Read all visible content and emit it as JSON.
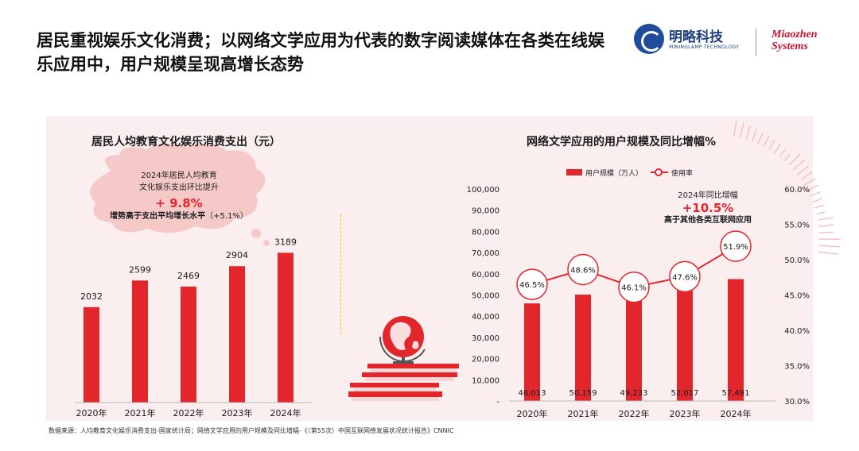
{
  "page": {
    "title": "居民重视娱乐文化消费；以网络文学应用为代表的数字阅读媒体在各类在线娱乐应用中，用户规模呈现高增长态势",
    "footnote": "数据来源：人均教育文化娱乐消费支出-国家统计局；网络文学应用的用户规模及同比增幅-《（第55次）中国互联网络发展状况统计报告》CNNIC"
  },
  "brand": {
    "name_cn": "明略科技",
    "name_en": "MININGLAMP TECHNOLOGY",
    "partner_line1": "Miaozhen",
    "partner_line2": "Systems"
  },
  "colors": {
    "accent": "#e3262c",
    "panel": "#fbeeee",
    "divider": "#f2c200"
  },
  "callouts": {
    "left": {
      "line1": "2024年居民人均教育",
      "line2": "文化娱乐支出环比提升",
      "pct": "+ 9.8%",
      "note_main": "增势高于支出平均增长水平",
      "note_sub": "（+5.1%）"
    },
    "right": {
      "line1": "2024年同比增幅",
      "pct": "+10.5%",
      "line3": "高于其他各类互联网应用"
    }
  },
  "chart_data": [
    {
      "type": "bar",
      "title": "居民人均教育文化娱乐消费支出（元）",
      "categories": [
        "2020年",
        "2021年",
        "2022年",
        "2023年",
        "2024年"
      ],
      "values": [
        2032,
        2599,
        2469,
        2904,
        3189
      ],
      "ylim": [
        0,
        3500
      ],
      "grid": false
    },
    {
      "type": "bar+line",
      "title": "网络文学应用的用户规模及同比增幅%",
      "categories": [
        "2020年",
        "2021年",
        "2022年",
        "2023年",
        "2024年"
      ],
      "legend_position": "top",
      "series": [
        {
          "name": "用户规模（万人）",
          "type": "bar",
          "axis": "left",
          "values": [
            46013,
            50159,
            49233,
            52017,
            57491
          ],
          "labels": [
            "46,013",
            "50,159",
            "49,233",
            "52,017",
            "57,491"
          ]
        },
        {
          "name": "使用率",
          "type": "line",
          "axis": "right",
          "values": [
            46.5,
            48.6,
            46.1,
            47.6,
            51.9
          ],
          "labels": [
            "46.5%",
            "48.6%",
            "46.1%",
            "47.6%",
            "51.9%"
          ]
        }
      ],
      "y_left": {
        "range": [
          0,
          100000
        ],
        "ticks": [
          "-",
          "10,000",
          "20,000",
          "30,000",
          "40,000",
          "50,000",
          "60,000",
          "70,000",
          "80,000",
          "90,000",
          "100,000"
        ]
      },
      "y_right": {
        "range": [
          30,
          60
        ],
        "ticks": [
          "30.0%",
          "35.0%",
          "40.0%",
          "45.0%",
          "50.0%",
          "55.0%",
          "60.0%"
        ]
      }
    }
  ]
}
